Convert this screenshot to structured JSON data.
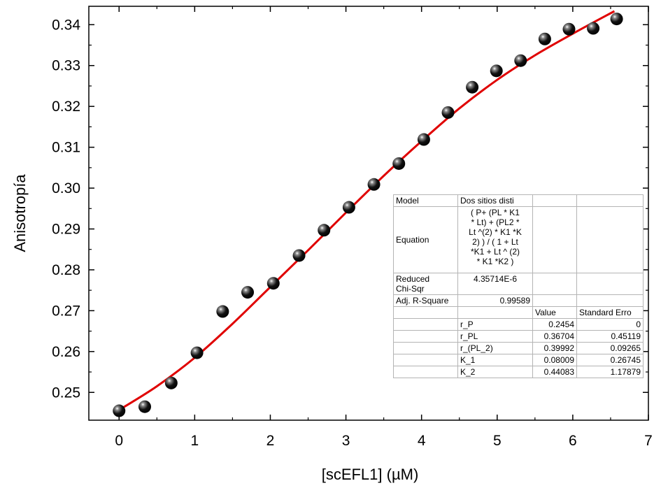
{
  "chart_data": {
    "type": "scatter",
    "xlabel": "[scEFL1] (µM)",
    "ylabel": "Anisotropía",
    "xlim": [
      -0.4,
      7
    ],
    "ylim": [
      0.2432,
      0.3445
    ],
    "x_ticks": [
      "0",
      "1",
      "2",
      "3",
      "4",
      "5",
      "6",
      "7"
    ],
    "y_ticks": [
      "0.25",
      "0.26",
      "0.27",
      "0.28",
      "0.29",
      "0.30",
      "0.31",
      "0.32",
      "0.33",
      "0.34"
    ],
    "series": [
      {
        "kind": "points",
        "x": [
          0,
          0.34,
          0.69,
          1.03,
          1.37,
          1.7,
          2.04,
          2.38,
          2.71,
          3.04,
          3.37,
          3.7,
          4.03,
          4.35,
          4.67,
          4.99,
          5.31,
          5.63,
          5.95,
          6.27,
          6.58
        ],
        "y": [
          0.2455,
          0.2465,
          0.2523,
          0.2597,
          0.2698,
          0.2745,
          0.2767,
          0.2835,
          0.2897,
          0.2953,
          0.3009,
          0.306,
          0.3119,
          0.3185,
          0.3247,
          0.3287,
          0.3312,
          0.3365,
          0.3389,
          0.3391,
          0.3414
        ],
        "color": "#000000"
      },
      {
        "kind": "fit",
        "x": [
          0,
          0.5,
          1,
          1.5,
          2,
          2.5,
          3,
          3.5,
          4,
          4.5,
          5,
          5.5,
          6,
          6.55
        ],
        "y": [
          0.2457,
          0.2515,
          0.2585,
          0.2668,
          0.2758,
          0.2848,
          0.294,
          0.303,
          0.3115,
          0.3195,
          0.3265,
          0.3325,
          0.3378,
          0.3433
        ],
        "color": "#e00000"
      }
    ],
    "grid": false
  },
  "fit_table": {
    "model_label": "Model",
    "model_value": "Dos sitios disti",
    "equation_label": "Equation",
    "equation_value": "( P+  (PL * K1\n * Lt) + (PL2 *\nLt ^(2) * K1 *K\n2)  ) / ( 1 + Lt\n*K1 + Lt ^ (2)\n* K1 *K2 )",
    "chisqr_label": "Reduced\nChi-Sqr",
    "chisqr_value": "4.35714E-6",
    "r2_label": "Adj. R-Square",
    "r2_value": "0.99589",
    "col_value": "Value",
    "col_stderr": "Standard Erro",
    "params": [
      {
        "name": "r_P",
        "value": "0.2454",
        "stderr": "0"
      },
      {
        "name": "r_PL",
        "value": "0.36704",
        "stderr": "0.45119"
      },
      {
        "name": "r_(PL_2)",
        "value": "0.39992",
        "stderr": "0.09265"
      },
      {
        "name": "K_1",
        "value": "0.08009",
        "stderr": "0.26745"
      },
      {
        "name": "K_2",
        "value": "0.44083",
        "stderr": "1.17879"
      }
    ]
  }
}
